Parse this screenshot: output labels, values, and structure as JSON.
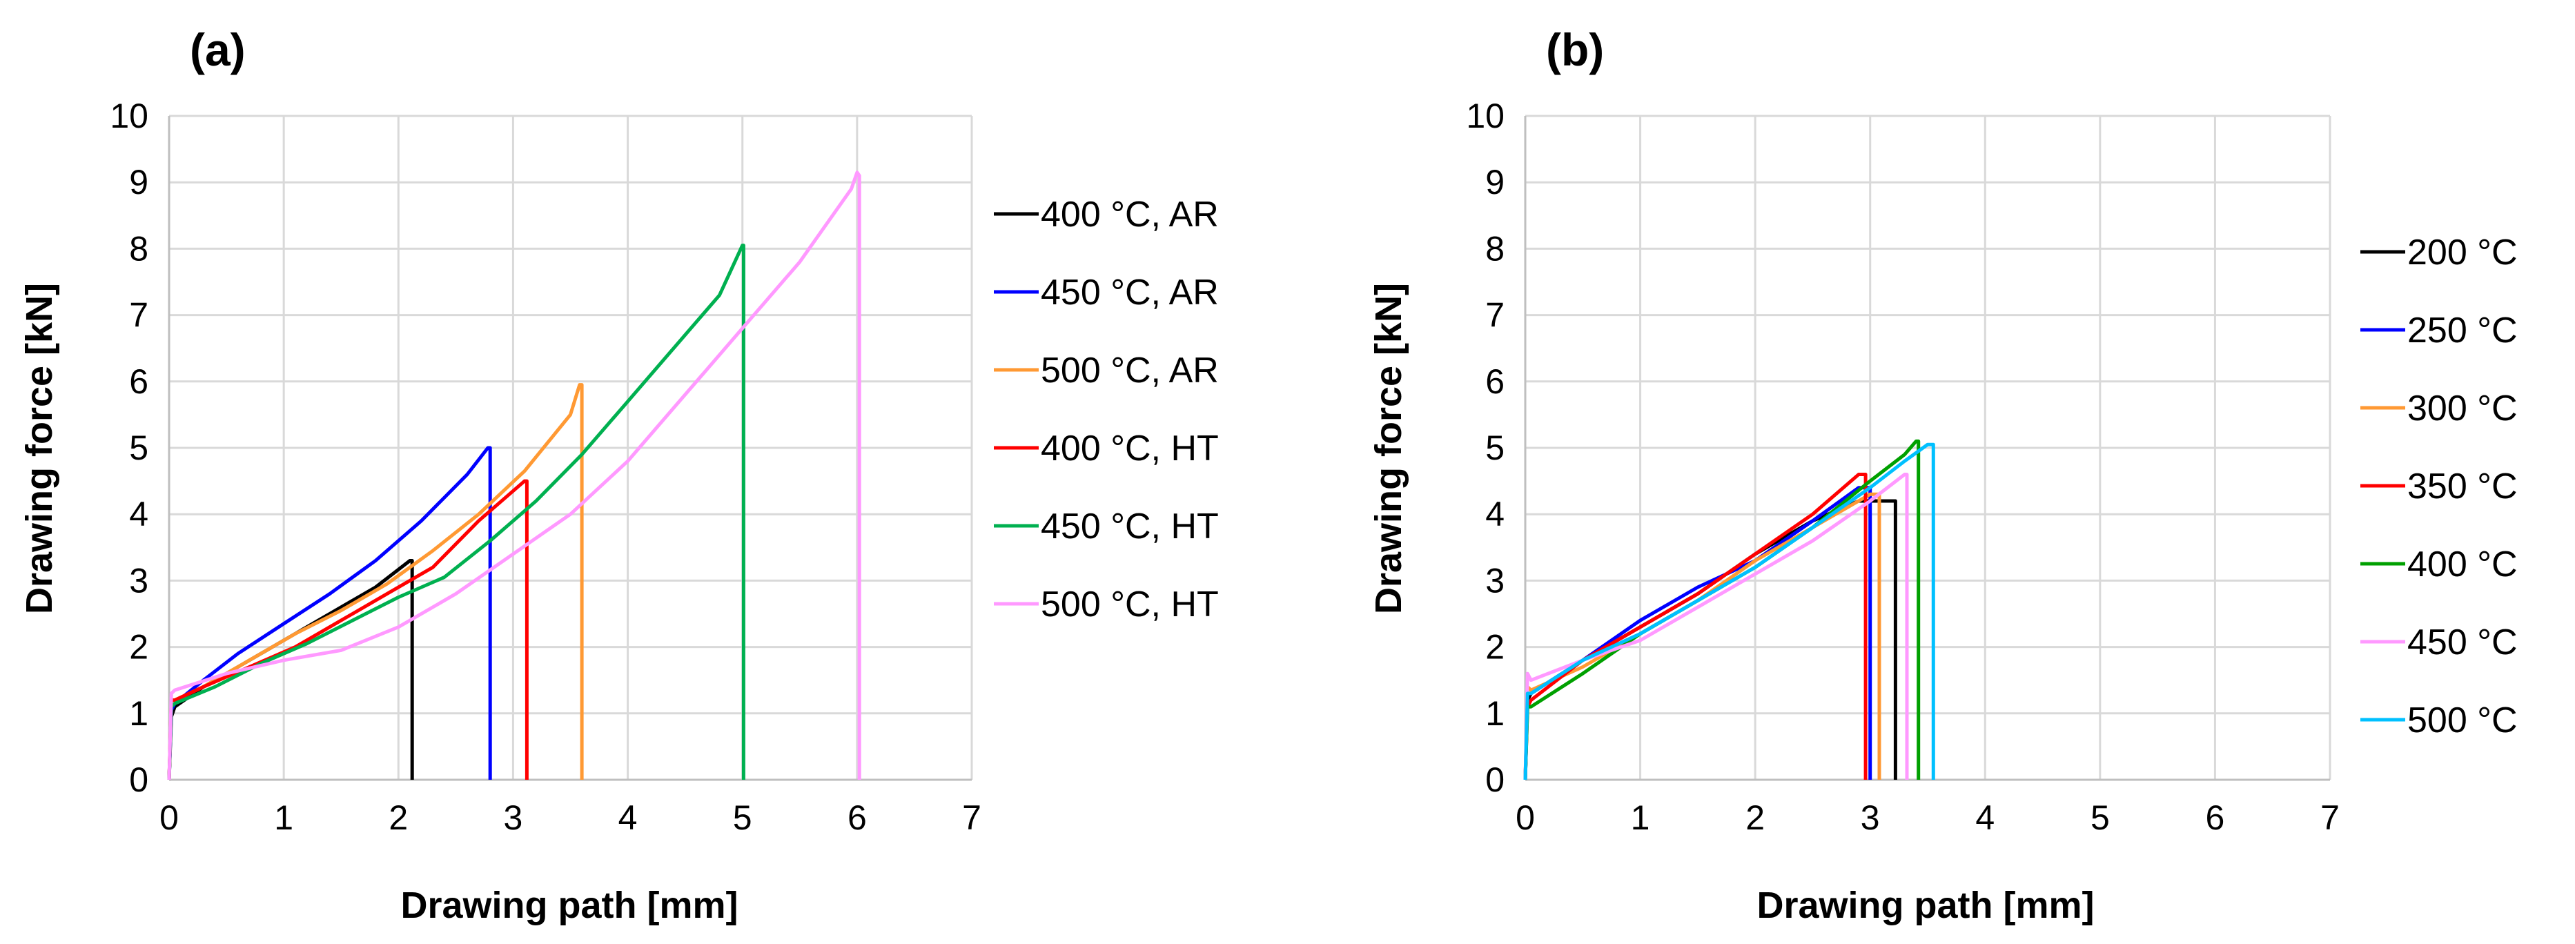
{
  "chart_data": [
    {
      "type": "line",
      "panel_label": "(a)",
      "xlabel": "Drawing path [mm]",
      "ylabel": "Drawing force [kN]",
      "xlim": [
        0,
        7
      ],
      "ylim": [
        0,
        10
      ],
      "xticks": [
        0,
        1,
        2,
        3,
        4,
        5,
        6,
        7
      ],
      "yticks": [
        0,
        1,
        2,
        3,
        4,
        5,
        6,
        7,
        8,
        9,
        10
      ],
      "grid": true,
      "legend_position": "right",
      "series": [
        {
          "name": "400 °C, AR",
          "color": "#000000",
          "x": [
            0,
            0.02,
            0.05,
            0.3,
            0.6,
            1.0,
            1.4,
            1.8,
            2.1,
            2.12,
            2.12
          ],
          "y": [
            0,
            0.95,
            1.1,
            1.4,
            1.7,
            2.1,
            2.5,
            2.9,
            3.3,
            3.3,
            0
          ]
        },
        {
          "name": "450 °C, AR",
          "color": "#0000ff",
          "x": [
            0,
            0.02,
            0.05,
            0.3,
            0.6,
            1.0,
            1.4,
            1.8,
            2.2,
            2.6,
            2.78,
            2.8,
            2.8
          ],
          "y": [
            0,
            1.05,
            1.15,
            1.5,
            1.9,
            2.35,
            2.8,
            3.3,
            3.9,
            4.6,
            5.0,
            5.0,
            0
          ]
        },
        {
          "name": "500 °C, AR",
          "color": "#ff9933",
          "x": [
            0,
            0.02,
            0.05,
            0.3,
            0.7,
            1.1,
            1.5,
            1.9,
            2.3,
            2.7,
            3.1,
            3.5,
            3.58,
            3.6,
            3.6
          ],
          "y": [
            0,
            1.2,
            1.2,
            1.4,
            1.8,
            2.2,
            2.55,
            2.95,
            3.45,
            4.0,
            4.65,
            5.5,
            5.95,
            5.95,
            0
          ]
        },
        {
          "name": "400 °C, HT",
          "color": "#ff0000",
          "x": [
            0,
            0.02,
            0.05,
            0.3,
            0.7,
            1.1,
            1.5,
            1.9,
            2.3,
            2.7,
            3.1,
            3.12,
            3.12
          ],
          "y": [
            0,
            1.2,
            1.2,
            1.4,
            1.7,
            2.0,
            2.4,
            2.8,
            3.2,
            3.9,
            4.5,
            4.5,
            0
          ]
        },
        {
          "name": "450 °C, HT",
          "color": "#00b050",
          "x": [
            0,
            0.02,
            0.05,
            0.4,
            0.8,
            1.2,
            1.6,
            2.0,
            2.4,
            2.8,
            3.2,
            3.6,
            4.0,
            4.4,
            4.8,
            5.0,
            5.01,
            5.01
          ],
          "y": [
            0,
            1.1,
            1.15,
            1.4,
            1.75,
            2.05,
            2.4,
            2.75,
            3.05,
            3.6,
            4.2,
            4.9,
            5.7,
            6.5,
            7.3,
            8.05,
            8.05,
            0
          ]
        },
        {
          "name": "500 °C, HT",
          "color": "#ff99ff",
          "x": [
            0,
            0.02,
            0.05,
            0.5,
            1.0,
            1.5,
            2.0,
            2.5,
            3.0,
            3.5,
            4.0,
            4.5,
            5.0,
            5.5,
            5.95,
            6.0,
            6.02,
            6.02
          ],
          "y": [
            0,
            1.3,
            1.35,
            1.6,
            1.8,
            1.95,
            2.3,
            2.8,
            3.4,
            4.0,
            4.8,
            5.8,
            6.8,
            7.8,
            8.9,
            9.15,
            9.1,
            0
          ]
        }
      ]
    },
    {
      "type": "line",
      "panel_label": "(b)",
      "xlabel": "Drawing path [mm]",
      "ylabel": "Drawing force [kN]",
      "xlim": [
        0,
        7
      ],
      "ylim": [
        0,
        10
      ],
      "xticks": [
        0,
        1,
        2,
        3,
        4,
        5,
        6,
        7
      ],
      "yticks": [
        0,
        1,
        2,
        3,
        4,
        5,
        6,
        7,
        8,
        9,
        10
      ],
      "grid": true,
      "legend_position": "right",
      "series": [
        {
          "name": "200 °C",
          "color": "#000000",
          "x": [
            0,
            0.02,
            0.05,
            0.5,
            1.0,
            1.5,
            2.0,
            2.5,
            2.9,
            3.1,
            3.2,
            3.22,
            3.22
          ],
          "y": [
            0,
            1.2,
            1.3,
            1.8,
            2.3,
            2.8,
            3.4,
            3.9,
            4.2,
            4.2,
            4.2,
            4.2,
            0
          ]
        },
        {
          "name": "250 °C",
          "color": "#0000ff",
          "x": [
            0,
            0.02,
            0.05,
            0.5,
            1.0,
            1.5,
            2.0,
            2.5,
            2.9,
            3.0,
            3.0
          ],
          "y": [
            0,
            1.3,
            1.3,
            1.8,
            2.4,
            2.9,
            3.3,
            3.9,
            4.4,
            4.4,
            0
          ]
        },
        {
          "name": "300 °C",
          "color": "#ff9933",
          "x": [
            0,
            0.02,
            0.05,
            0.5,
            1.0,
            1.5,
            2.0,
            2.5,
            3.0,
            3.08,
            3.08
          ],
          "y": [
            0,
            1.4,
            1.35,
            1.7,
            2.2,
            2.7,
            3.3,
            3.8,
            4.3,
            4.3,
            0
          ]
        },
        {
          "name": "350 °C",
          "color": "#ff0000",
          "x": [
            0,
            0.02,
            0.05,
            0.5,
            1.0,
            1.5,
            2.0,
            2.5,
            2.9,
            2.96,
            2.96
          ],
          "y": [
            0,
            1.1,
            1.2,
            1.8,
            2.3,
            2.8,
            3.4,
            4.0,
            4.6,
            4.6,
            0
          ]
        },
        {
          "name": "400 °C",
          "color": "#00a000",
          "x": [
            0,
            0.02,
            0.05,
            0.5,
            1.0,
            1.5,
            2.0,
            2.5,
            3.0,
            3.3,
            3.4,
            3.42,
            3.42
          ],
          "y": [
            0,
            1.1,
            1.1,
            1.6,
            2.2,
            2.7,
            3.2,
            3.8,
            4.5,
            4.9,
            5.1,
            5.1,
            0
          ]
        },
        {
          "name": "450 °C",
          "color": "#ff99ff",
          "x": [
            0,
            0.02,
            0.05,
            0.5,
            1.0,
            1.5,
            2.0,
            2.5,
            3.0,
            3.3,
            3.32,
            3.32
          ],
          "y": [
            0,
            1.6,
            1.5,
            1.8,
            2.1,
            2.6,
            3.1,
            3.6,
            4.2,
            4.6,
            4.6,
            0
          ]
        },
        {
          "name": "500 °C",
          "color": "#00c0ff",
          "x": [
            0,
            0.02,
            0.05,
            0.5,
            1.0,
            1.5,
            2.0,
            2.5,
            3.0,
            3.3,
            3.5,
            3.55,
            3.55
          ],
          "y": [
            0,
            1.3,
            1.3,
            1.8,
            2.2,
            2.7,
            3.2,
            3.8,
            4.4,
            4.8,
            5.05,
            5.05,
            0
          ]
        }
      ]
    }
  ]
}
